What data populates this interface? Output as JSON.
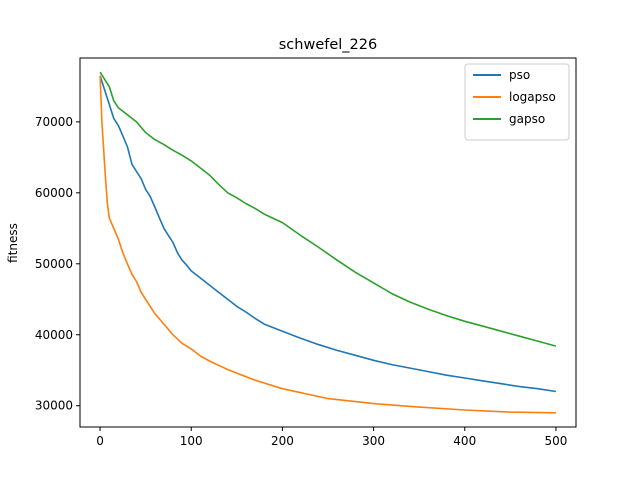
{
  "chart_data": {
    "type": "line",
    "title": "schwefel_226",
    "xlabel": "",
    "ylabel": "fitness",
    "xlim": [
      -22,
      522
    ],
    "ylim": [
      27000,
      79000
    ],
    "xticks": [
      0,
      100,
      200,
      300,
      400,
      500
    ],
    "yticks": [
      30000,
      40000,
      50000,
      60000,
      70000
    ],
    "grid": false,
    "legend_position": "top-right",
    "series": [
      {
        "name": "pso",
        "color": "#1f77b4",
        "x": [
          0,
          5,
          10,
          15,
          20,
          25,
          30,
          35,
          40,
          45,
          50,
          55,
          60,
          65,
          70,
          75,
          80,
          85,
          90,
          95,
          100,
          110,
          120,
          130,
          140,
          150,
          160,
          170,
          180,
          200,
          220,
          240,
          260,
          280,
          300,
          320,
          340,
          360,
          380,
          400,
          420,
          440,
          460,
          480,
          500
        ],
        "y": [
          76500,
          74500,
          72500,
          70500,
          69500,
          68000,
          66500,
          64000,
          63000,
          62000,
          60500,
          59500,
          58000,
          56500,
          55000,
          54000,
          53000,
          51500,
          50500,
          49800,
          49000,
          48000,
          47000,
          46000,
          45000,
          44000,
          43200,
          42300,
          41500,
          40500,
          39500,
          38600,
          37800,
          37100,
          36400,
          35800,
          35300,
          34800,
          34300,
          33900,
          33500,
          33100,
          32700,
          32400,
          32000
        ]
      },
      {
        "name": "logapso",
        "color": "#ff7f0e",
        "x": [
          0,
          2,
          4,
          6,
          8,
          10,
          15,
          20,
          25,
          30,
          35,
          40,
          45,
          50,
          55,
          60,
          70,
          80,
          90,
          100,
          110,
          120,
          130,
          140,
          150,
          170,
          200,
          250,
          300,
          350,
          400,
          450,
          500
        ],
        "y": [
          76500,
          70000,
          66000,
          62000,
          58500,
          56500,
          55000,
          53500,
          51500,
          50000,
          48500,
          47500,
          46000,
          45000,
          44000,
          43000,
          41500,
          40000,
          38800,
          38000,
          37000,
          36300,
          35700,
          35100,
          34600,
          33600,
          32400,
          31000,
          30300,
          29800,
          29400,
          29100,
          29000
        ]
      },
      {
        "name": "gapso",
        "color": "#2ca02c",
        "x": [
          0,
          5,
          10,
          15,
          20,
          25,
          30,
          40,
          50,
          60,
          70,
          80,
          90,
          100,
          110,
          120,
          130,
          140,
          150,
          160,
          170,
          180,
          200,
          220,
          240,
          260,
          280,
          300,
          320,
          340,
          360,
          380,
          400,
          420,
          440,
          460,
          480,
          500
        ],
        "y": [
          77000,
          76000,
          75000,
          73000,
          72000,
          71500,
          71000,
          70000,
          68500,
          67500,
          66800,
          66000,
          65300,
          64500,
          63500,
          62500,
          61200,
          60000,
          59300,
          58500,
          57800,
          57000,
          55800,
          54000,
          52300,
          50500,
          48800,
          47300,
          45800,
          44600,
          43600,
          42700,
          41900,
          41200,
          40500,
          39800,
          39100,
          38400
        ]
      }
    ]
  }
}
